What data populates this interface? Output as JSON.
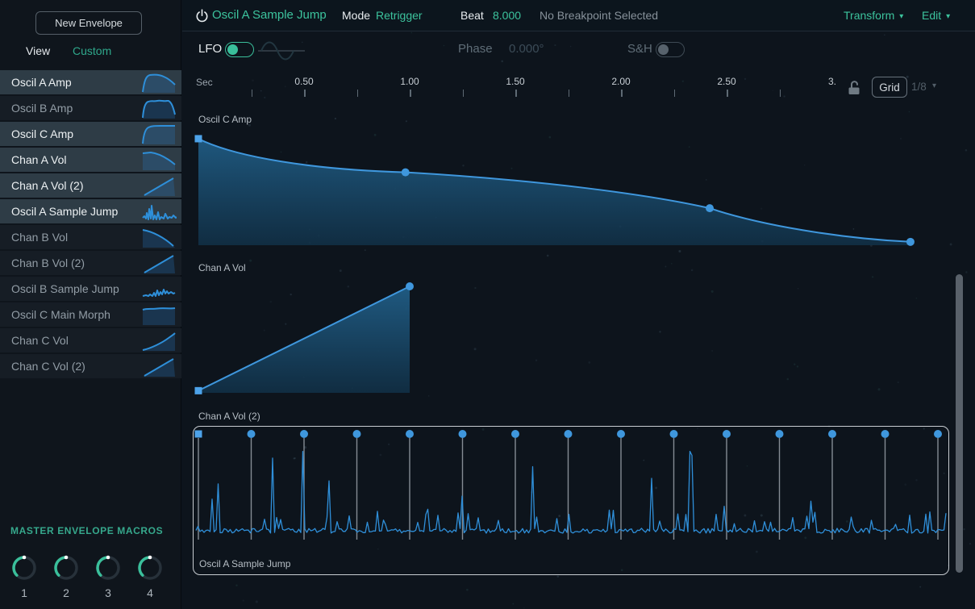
{
  "colors": {
    "accent": "#3abf9b",
    "curve_blue": "#3f97dd",
    "background": "#0d141c"
  },
  "topbar": {
    "power_icon": "power-icon",
    "title": "Oscil A Sample Jump",
    "mode_label": "Mode",
    "mode_value": "Retrigger",
    "beat_label": "Beat",
    "beat_value": "8.000",
    "status": "No Breakpoint Selected",
    "transform_label": "Transform",
    "edit_label": "Edit"
  },
  "sidebar": {
    "new_envelope_button": "New Envelope",
    "tabs": [
      {
        "label": "View",
        "active": false
      },
      {
        "label": "Custom",
        "active": true
      }
    ],
    "envelopes": [
      {
        "label": "Oscil A Amp",
        "thumb": "attack-bump-curve",
        "highlighted": true
      },
      {
        "label": "Oscil B Amp",
        "thumb": "attack-plateau-curve",
        "highlighted": false
      },
      {
        "label": "Oscil C Amp",
        "thumb": "attack-hold-curve",
        "highlighted": true
      },
      {
        "label": "Chan A Vol",
        "thumb": "hold-decay-curve",
        "highlighted": true
      },
      {
        "label": "Chan A Vol (2)",
        "thumb": "ramp-up-curve",
        "highlighted": true
      },
      {
        "label": "Oscil A Sample Jump",
        "thumb": "spiky-wave",
        "highlighted": true
      },
      {
        "label": "Chan B Vol",
        "thumb": "decay-curve",
        "highlighted": false
      },
      {
        "label": "Chan B Vol (2)",
        "thumb": "ramp-up-curve",
        "highlighted": false
      },
      {
        "label": "Oscil B Sample Jump",
        "thumb": "small-spiky-wave",
        "highlighted": false
      },
      {
        "label": "Oscil C Main Morph",
        "thumb": "flat-high-curve",
        "highlighted": false
      },
      {
        "label": "Chan C Vol",
        "thumb": "concave-rise-curve",
        "highlighted": false
      },
      {
        "label": "Chan C Vol (2)",
        "thumb": "ramp-up-curve",
        "highlighted": false
      }
    ],
    "macros": {
      "title": "MASTER ENVELOPE MACROS",
      "knobs": [
        {
          "label": "1",
          "value": 0.5
        },
        {
          "label": "2",
          "value": 0.5
        },
        {
          "label": "3",
          "value": 0.5
        },
        {
          "label": "4",
          "value": 0.5
        }
      ]
    }
  },
  "lfo": {
    "label": "LFO",
    "enabled": true,
    "wave_icon": "sine-wave-icon",
    "phase_label": "Phase",
    "phase_value": "0.000°",
    "sh_label": "S&H",
    "sh_enabled": false
  },
  "ruler": {
    "unit": "Sec",
    "major_ticks": [
      {
        "sec": 0.5,
        "label": "0.50"
      },
      {
        "sec": 1.0,
        "label": "1.00"
      },
      {
        "sec": 1.5,
        "label": "1.50"
      },
      {
        "sec": 2.0,
        "label": "2.00"
      },
      {
        "sec": 2.5,
        "label": "2.50"
      },
      {
        "sec": 3.0,
        "label": "3."
      }
    ],
    "minor_interval_sec": 0.25,
    "minor_tick_range_sec": [
      0.25,
      2.75
    ],
    "lock_icon": "unlocked-padlock-icon",
    "grid_button": "Grid",
    "grid_division": "1/8"
  },
  "lanes": [
    {
      "label": "Oscil C Amp",
      "type": "envelope-label-only"
    },
    {
      "label": "Chan A Vol",
      "type": "envelope",
      "points": [
        {
          "sec": 0.0,
          "value": 0.95
        },
        {
          "sec": 0.98,
          "value": 0.65
        },
        {
          "sec": 2.42,
          "value": 0.33
        },
        {
          "sec": 3.37,
          "value": 0.03
        }
      ]
    },
    {
      "label": "Chan A Vol (2)",
      "type": "envelope",
      "points": [
        {
          "sec": 0.0,
          "value": 0.02
        },
        {
          "sec": 1.0,
          "value": 1.0
        }
      ]
    },
    {
      "label": "Oscil A Sample Jump",
      "type": "sample-jump",
      "selected": true,
      "breakpoints_sec": [
        0,
        0.25,
        0.5,
        0.75,
        1.0,
        1.25,
        1.5,
        1.75,
        2.0,
        2.25,
        2.5,
        2.75,
        3.0,
        3.25,
        3.5
      ],
      "waveform_seed": 13
    }
  ]
}
